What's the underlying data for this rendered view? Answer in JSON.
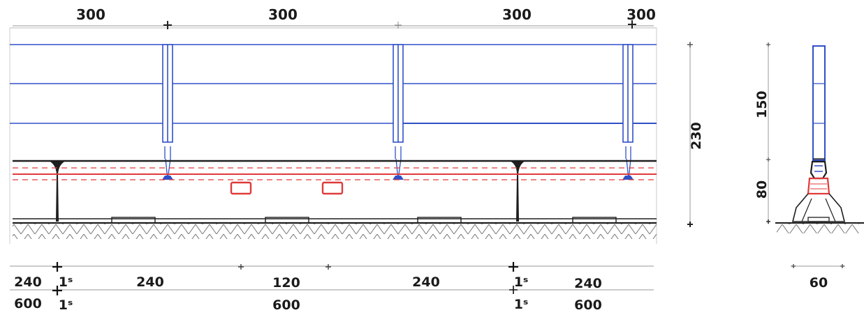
{
  "colors": {
    "rail": "#3050c8",
    "parapet": "#1e1e1e",
    "drainage": "#e03a3a",
    "dimension": "#6a6a6a",
    "ground": "#555555"
  },
  "top_dimensions": [
    "300",
    "300",
    "300",
    "300"
  ],
  "bottom_dimensions_row1": [
    "240",
    "1ˢ",
    "240",
    "120",
    "240",
    "1ˢ",
    "240"
  ],
  "bottom_dimensions_row2": [
    "600",
    "1ˢ",
    "600",
    "1ˢ",
    "600"
  ],
  "height_dimension": "230",
  "section_dimensions": {
    "upper": "150",
    "lower": "80",
    "width": "60"
  },
  "icons": {
    "tick": "plus-tick-icon"
  }
}
